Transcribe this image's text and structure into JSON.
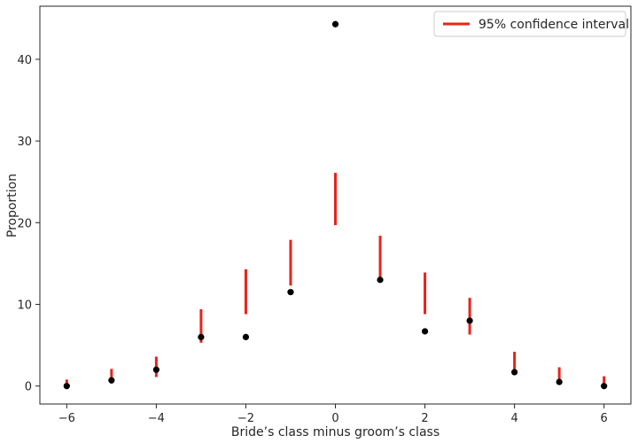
{
  "chart_data": {
    "type": "scatter",
    "xlabel": "Bride’s class minus groom’s class",
    "ylabel": "Proportion",
    "xlim": [
      -6.6,
      6.6
    ],
    "ylim": [
      -2.2,
      46.5
    ],
    "x_ticks": [
      -6,
      -4,
      -2,
      0,
      2,
      4,
      6
    ],
    "x_tick_labels": [
      "−6",
      "−4",
      "−2",
      "0",
      "2",
      "4",
      "6"
    ],
    "y_ticks": [
      0,
      10,
      20,
      30,
      40
    ],
    "y_tick_labels": [
      "0",
      "10",
      "20",
      "30",
      "40"
    ],
    "grid": false,
    "legend_position": "top-right",
    "series": [
      {
        "kind": "points",
        "color": "#000000",
        "x": [
          -6,
          -5,
          -4,
          -3,
          -2,
          -1,
          0,
          1,
          2,
          3,
          4,
          5,
          6
        ],
        "y": [
          0.0,
          0.7,
          2.0,
          6.0,
          6.0,
          11.5,
          44.3,
          13.0,
          6.7,
          8.0,
          1.7,
          0.5,
          0.0
        ]
      },
      {
        "kind": "interval",
        "name": "95% confidence interval",
        "color": "#e8231c",
        "x": [
          -6,
          -5,
          -4,
          -3,
          -2,
          -1,
          0,
          1,
          2,
          3,
          4,
          5,
          6
        ],
        "low": [
          -0.1,
          0.3,
          1.1,
          5.3,
          8.8,
          12.3,
          19.7,
          12.7,
          8.8,
          6.3,
          1.5,
          0.3,
          -0.1
        ],
        "high": [
          0.8,
          2.1,
          3.6,
          9.4,
          14.3,
          17.9,
          26.1,
          18.4,
          13.9,
          10.8,
          4.2,
          2.3,
          1.2
        ]
      }
    ]
  }
}
